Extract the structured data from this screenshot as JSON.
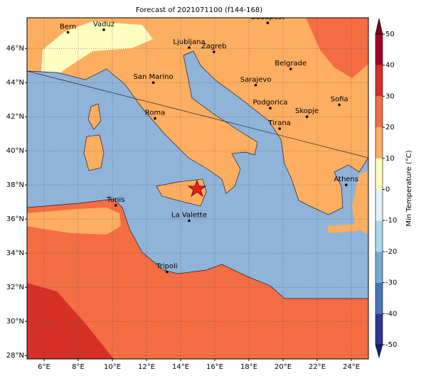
{
  "title": "Forecast of 2021071100 (f144-168)",
  "map": {
    "xlim": [
      5,
      25
    ],
    "ylim": [
      27.8,
      47.8
    ],
    "xticks": [
      {
        "value": 6,
        "label": "6°E"
      },
      {
        "value": 8,
        "label": "8°E"
      },
      {
        "value": 10,
        "label": "10°E"
      },
      {
        "value": 12,
        "label": "12°E"
      },
      {
        "value": 14,
        "label": "14°E"
      },
      {
        "value": 16,
        "label": "16°E"
      },
      {
        "value": 18,
        "label": "18°E"
      },
      {
        "value": 20,
        "label": "20°E"
      },
      {
        "value": 22,
        "label": "22°E"
      },
      {
        "value": 24,
        "label": "24°E"
      }
    ],
    "yticks": [
      {
        "value": 28,
        "label": "28°N"
      },
      {
        "value": 30,
        "label": "30°N"
      },
      {
        "value": 32,
        "label": "32°N"
      },
      {
        "value": 34,
        "label": "34°N"
      },
      {
        "value": 36,
        "label": "36°N"
      },
      {
        "value": 38,
        "label": "38°N"
      },
      {
        "value": 40,
        "label": "40°N"
      },
      {
        "value": 42,
        "label": "42°N"
      },
      {
        "value": 44,
        "label": "44°N"
      },
      {
        "value": 46,
        "label": "46°N"
      }
    ],
    "grid": true
  },
  "cities": [
    {
      "name": "Bern",
      "lon": 7.4,
      "lat": 46.95
    },
    {
      "name": "Vaduz",
      "lon": 9.5,
      "lat": 47.1
    },
    {
      "name": "Budapest",
      "lon": 19.1,
      "lat": 47.5
    },
    {
      "name": "Ljubljana",
      "lon": 14.5,
      "lat": 46.05
    },
    {
      "name": "Zagreb",
      "lon": 15.95,
      "lat": 45.8
    },
    {
      "name": "Belgrade",
      "lon": 20.45,
      "lat": 44.8
    },
    {
      "name": "San Marino",
      "lon": 12.4,
      "lat": 44.0
    },
    {
      "name": "Sarajevo",
      "lon": 18.4,
      "lat": 43.85
    },
    {
      "name": "Sofia",
      "lon": 23.3,
      "lat": 42.7
    },
    {
      "name": "Roma",
      "lon": 12.5,
      "lat": 41.9
    },
    {
      "name": "Podgorica",
      "lon": 19.25,
      "lat": 42.5
    },
    {
      "name": "Skopje",
      "lon": 21.4,
      "lat": 42.0
    },
    {
      "name": "Tirana",
      "lon": 19.8,
      "lat": 41.3
    },
    {
      "name": "Athens",
      "lon": 23.7,
      "lat": 38.0
    },
    {
      "name": "Tunis",
      "lon": 10.2,
      "lat": 36.8
    },
    {
      "name": "La Valette",
      "lon": 14.5,
      "lat": 35.9
    },
    {
      "name": "Tripoli",
      "lon": 13.2,
      "lat": 32.9
    }
  ],
  "colorbar": {
    "label": "Min Temperature (°C)",
    "lim": [
      -50,
      50
    ],
    "ticks": [
      -50,
      -40,
      -30,
      -20,
      -10,
      0,
      10,
      20,
      30,
      40,
      50
    ],
    "colors": [
      "#1a1f6e",
      "#313695",
      "#4575b4",
      "#74add1",
      "#abd9e9",
      "#e0f3f8",
      "#fefec0",
      "#fdae61",
      "#f46d43",
      "#d73027",
      "#a50026",
      "#7a0020"
    ]
  }
}
